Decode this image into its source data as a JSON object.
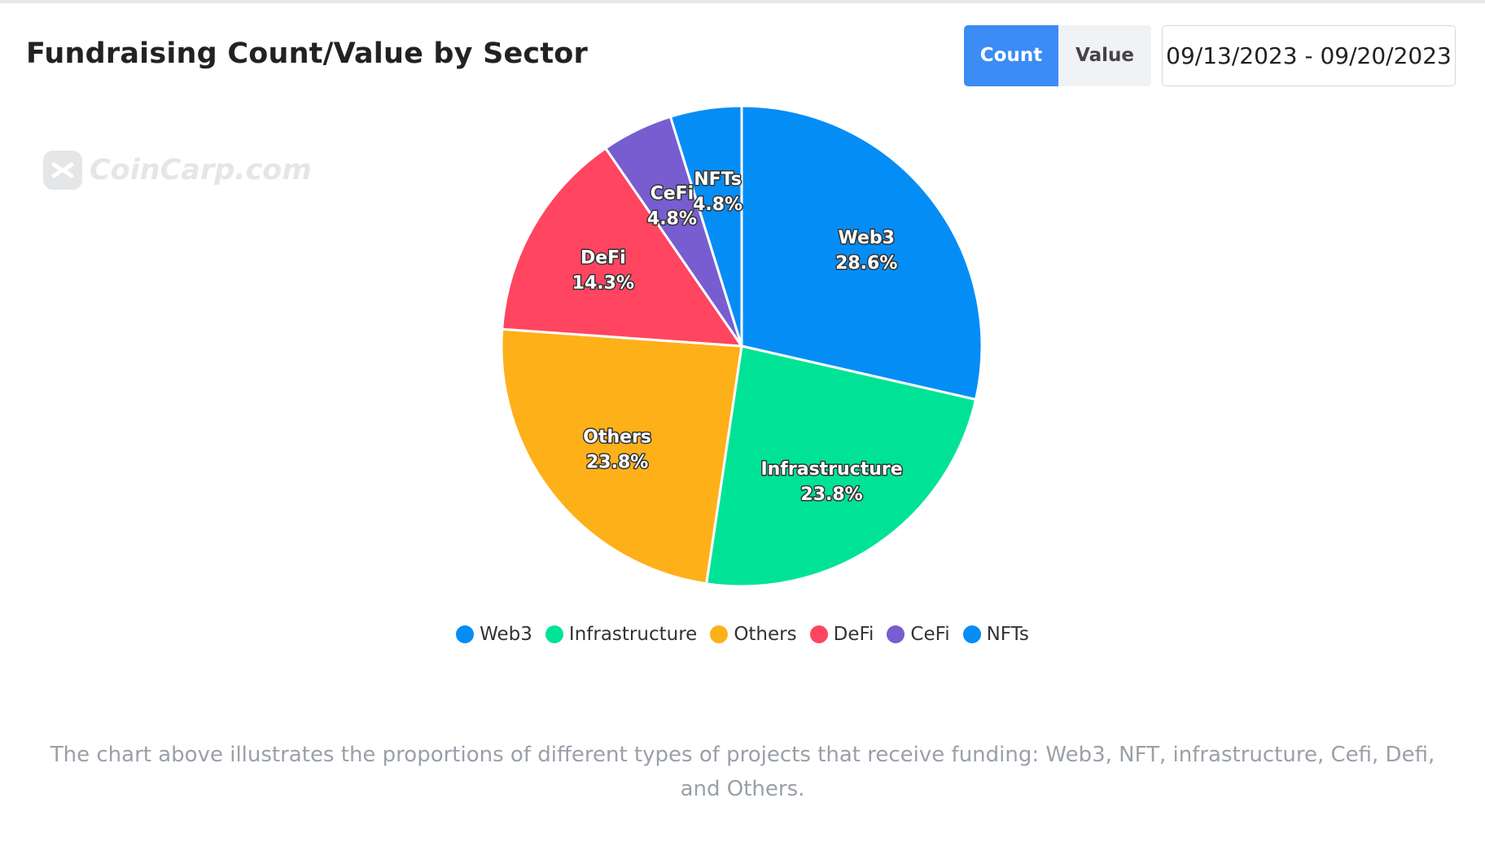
{
  "header": {
    "title": "Fundraising Count/Value by Sector",
    "toggle": {
      "count_label": "Count",
      "value_label": "Value",
      "selected": "Count"
    },
    "date_range": "09/13/2023 - 09/20/2023"
  },
  "watermark": {
    "text": "CoinCarp.com",
    "icon": "coincarp-logo-icon"
  },
  "chart_data": {
    "type": "pie",
    "title": "Fundraising Count/Value by Sector",
    "categories": [
      "Web3",
      "Infrastructure",
      "Others",
      "DeFi",
      "CeFi",
      "NFTs"
    ],
    "values": [
      28.6,
      23.8,
      23.8,
      14.3,
      4.8,
      4.8
    ],
    "value_labels": [
      "28.6%",
      "23.8%",
      "23.8%",
      "14.3%",
      "4.8%",
      "4.8%"
    ],
    "unit": "%",
    "colors": [
      "#058DF6",
      "#00E396",
      "#FEB019",
      "#FF4560",
      "#775DD0",
      "#058DF6"
    ],
    "legend_position": "bottom-center",
    "start_direction": "top, clockwise"
  },
  "legend": {
    "items": [
      {
        "label": "Web3",
        "color": "#058DF6"
      },
      {
        "label": "Infrastructure",
        "color": "#00E396"
      },
      {
        "label": "Others",
        "color": "#FEB019"
      },
      {
        "label": "DeFi",
        "color": "#FF4560"
      },
      {
        "label": "CeFi",
        "color": "#775DD0"
      },
      {
        "label": "NFTs",
        "color": "#058DF6"
      }
    ]
  },
  "caption": "The chart above illustrates the proportions of different types of projects that receive funding: Web3, NFT, infrastructure, Cefi, Defi, and Others."
}
